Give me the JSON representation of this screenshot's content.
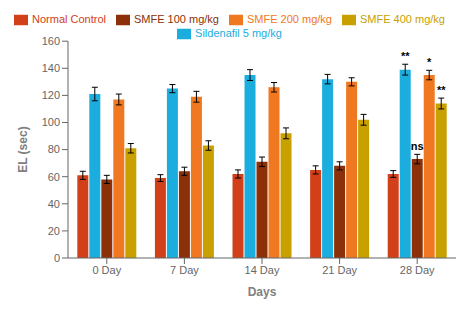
{
  "chart_data": {
    "type": "bar",
    "x_label": "Days",
    "y_label": "EL (sec)",
    "categories": [
      "0 Day",
      "7 Day",
      "14 Day",
      "21 Day",
      "28 Day"
    ],
    "series": [
      {
        "name": "Normal Control",
        "color": "#D2401A",
        "values": [
          61,
          59,
          62,
          65,
          62
        ],
        "errors": [
          3,
          2.5,
          3,
          3,
          2.5
        ]
      },
      {
        "name": "Sildenafil 5 mg/kg",
        "color": "#1AADDE",
        "values": [
          121,
          125,
          135,
          132,
          139
        ],
        "errors": [
          5,
          3,
          4,
          3.5,
          4
        ]
      },
      {
        "name": "SMFE 100 mg/kg",
        "color": "#8B3008",
        "values": [
          58,
          64,
          71,
          68,
          73
        ],
        "errors": [
          3,
          3,
          3.5,
          3,
          3.5
        ]
      },
      {
        "name": "SMFE 200 mg/kg",
        "color": "#F07820",
        "values": [
          117,
          119,
          126,
          130,
          135
        ],
        "errors": [
          4,
          4,
          3.5,
          3,
          3.5
        ]
      },
      {
        "name": "SMFE 400 mg/kg",
        "color": "#C8A000",
        "values": [
          81,
          83,
          92,
          102,
          114
        ],
        "errors": [
          3.5,
          3.5,
          4,
          4,
          4
        ]
      }
    ],
    "annotations": [
      {
        "category": "28 Day",
        "series": "Sildenafil 5 mg/kg",
        "text": "**"
      },
      {
        "category": "28 Day",
        "series": "SMFE 200 mg/kg",
        "text": "*"
      },
      {
        "category": "28 Day",
        "series": "SMFE 400 mg/kg",
        "text": "**"
      },
      {
        "category": "28 Day",
        "series": "SMFE 100 mg/kg",
        "text": "ns"
      }
    ],
    "ylim": [
      0,
      160
    ],
    "yticks": [
      0,
      20,
      40,
      60,
      80,
      100,
      120,
      140,
      160
    ],
    "legend": "top",
    "grid": false
  }
}
